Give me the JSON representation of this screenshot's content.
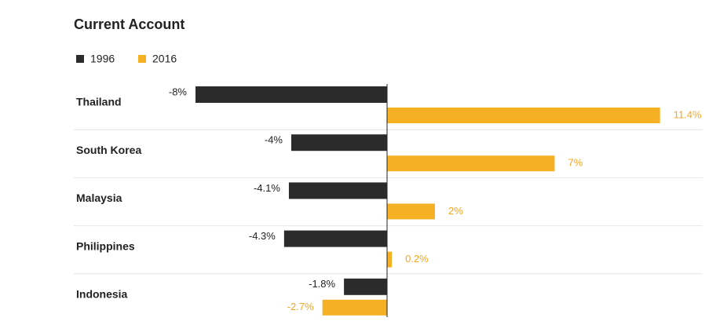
{
  "chart_data": {
    "type": "bar",
    "orientation": "horizontal",
    "title": "Current Account",
    "categories": [
      "Thailand",
      "South Korea",
      "Malaysia",
      "Philippines",
      "Indonesia"
    ],
    "series": [
      {
        "name": "1996",
        "color": "#2b2b2b",
        "values": [
          -8,
          -4,
          -4.1,
          -4.3,
          -1.8
        ],
        "value_labels": [
          "-8%",
          "-4%",
          "-4.1%",
          "-4.3%",
          "-1.8%"
        ]
      },
      {
        "name": "2016",
        "color": "#f5b024",
        "values": [
          11.4,
          7,
          2,
          0.2,
          -2.7
        ],
        "value_labels": [
          "11.4%",
          "7%",
          "2%",
          "0.2%",
          "-2.7%"
        ]
      }
    ]
  }
}
